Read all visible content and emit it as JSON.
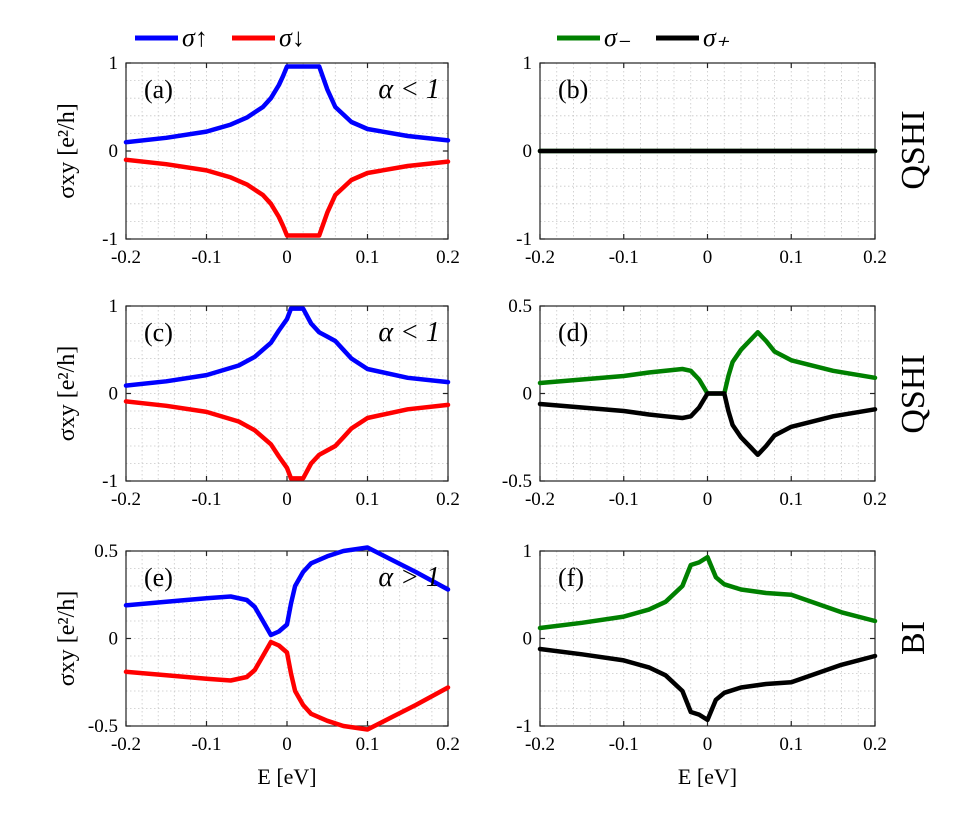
{
  "chart_data": [
    {
      "panel": "(a)",
      "type": "line",
      "condition": "α < 1",
      "xlim": [
        -0.2,
        0.2
      ],
      "ylim": [
        -1,
        1
      ],
      "xticks": [
        "-0.2",
        "-0.1",
        "0",
        "0.1",
        "0.2"
      ],
      "yticks": [
        "1",
        "0",
        "-1"
      ],
      "ylabel": "σxy [e²/h]",
      "xlabel": "",
      "series": [
        {
          "name": "σ↑",
          "color": "#0000ff",
          "x": [
            -0.2,
            -0.15,
            -0.1,
            -0.07,
            -0.05,
            -0.03,
            -0.02,
            -0.01,
            -0.005,
            0,
            0.01,
            0.02,
            0.03,
            0.04,
            0.05,
            0.06,
            0.08,
            0.1,
            0.15,
            0.2
          ],
          "y": [
            0.1,
            0.15,
            0.22,
            0.3,
            0.38,
            0.5,
            0.6,
            0.75,
            0.85,
            0.96,
            0.96,
            0.96,
            0.96,
            0.96,
            0.7,
            0.5,
            0.33,
            0.25,
            0.17,
            0.12
          ]
        },
        {
          "name": "σ↓",
          "color": "#ff0000",
          "x": [
            -0.2,
            -0.15,
            -0.1,
            -0.07,
            -0.05,
            -0.03,
            -0.02,
            -0.01,
            -0.005,
            0,
            0.01,
            0.02,
            0.03,
            0.04,
            0.05,
            0.06,
            0.08,
            0.1,
            0.15,
            0.2
          ],
          "y": [
            -0.1,
            -0.15,
            -0.22,
            -0.3,
            -0.38,
            -0.5,
            -0.6,
            -0.75,
            -0.85,
            -0.96,
            -0.96,
            -0.96,
            -0.96,
            -0.96,
            -0.7,
            -0.5,
            -0.33,
            -0.25,
            -0.17,
            -0.12
          ]
        }
      ]
    },
    {
      "panel": "(b)",
      "type": "line",
      "condition": "",
      "xlim": [
        -0.2,
        0.2
      ],
      "ylim": [
        -1,
        1
      ],
      "xticks": [
        "-0.2",
        "-0.1",
        "0",
        "0.1",
        "0.2"
      ],
      "yticks": [
        "1",
        "0",
        "-1"
      ],
      "ylabel": "",
      "xlabel": "",
      "series": [
        {
          "name": "σ₋",
          "color": "#008000",
          "x": [
            -0.2,
            0.2
          ],
          "y": [
            0,
            0
          ]
        },
        {
          "name": "σ₊",
          "color": "#000000",
          "x": [
            -0.2,
            0.2
          ],
          "y": [
            0,
            0
          ]
        }
      ]
    },
    {
      "panel": "(c)",
      "type": "line",
      "condition": "α < 1",
      "xlim": [
        -0.2,
        0.2
      ],
      "ylim": [
        -1,
        1
      ],
      "xticks": [
        "-0.2",
        "-0.1",
        "0",
        "0.1",
        "0.2"
      ],
      "yticks": [
        "1",
        "0",
        "-1"
      ],
      "ylabel": "σxy [e²/h]",
      "xlabel": "",
      "series": [
        {
          "name": "σ↑",
          "color": "#0000ff",
          "x": [
            -0.2,
            -0.15,
            -0.1,
            -0.06,
            -0.04,
            -0.02,
            -0.01,
            0,
            0.005,
            0.015,
            0.02,
            0.03,
            0.04,
            0.05,
            0.06,
            0.07,
            0.08,
            0.1,
            0.15,
            0.2
          ],
          "y": [
            0.09,
            0.14,
            0.21,
            0.32,
            0.42,
            0.58,
            0.72,
            0.85,
            0.97,
            0.97,
            0.97,
            0.8,
            0.7,
            0.65,
            0.6,
            0.5,
            0.4,
            0.28,
            0.18,
            0.13
          ]
        },
        {
          "name": "σ↓",
          "color": "#ff0000",
          "x": [
            -0.2,
            -0.15,
            -0.1,
            -0.06,
            -0.04,
            -0.02,
            -0.01,
            0,
            0.005,
            0.015,
            0.02,
            0.03,
            0.04,
            0.05,
            0.06,
            0.07,
            0.08,
            0.1,
            0.15,
            0.2
          ],
          "y": [
            -0.09,
            -0.14,
            -0.21,
            -0.32,
            -0.42,
            -0.58,
            -0.72,
            -0.85,
            -0.97,
            -0.97,
            -0.97,
            -0.8,
            -0.7,
            -0.65,
            -0.6,
            -0.5,
            -0.4,
            -0.28,
            -0.18,
            -0.13
          ]
        }
      ]
    },
    {
      "panel": "(d)",
      "type": "line",
      "condition": "",
      "xlim": [
        -0.2,
        0.2
      ],
      "ylim": [
        -0.5,
        0.5
      ],
      "xticks": [
        "-0.2",
        "-0.1",
        "0",
        "0.1",
        "0.2"
      ],
      "yticks": [
        "0.5",
        "0",
        "-0.5"
      ],
      "ylabel": "",
      "xlabel": "",
      "series": [
        {
          "name": "σ₋",
          "color": "#008000",
          "x": [
            -0.2,
            -0.15,
            -0.1,
            -0.07,
            -0.05,
            -0.03,
            -0.02,
            -0.01,
            -0.005,
            0,
            0.005,
            0.02,
            0.025,
            0.03,
            0.04,
            0.05,
            0.06,
            0.07,
            0.08,
            0.1,
            0.15,
            0.2
          ],
          "y": [
            0.06,
            0.08,
            0.1,
            0.12,
            0.13,
            0.14,
            0.13,
            0.08,
            0.04,
            0.0,
            0.0,
            0.0,
            0.1,
            0.18,
            0.25,
            0.3,
            0.35,
            0.3,
            0.24,
            0.19,
            0.13,
            0.09
          ]
        },
        {
          "name": "σ₊",
          "color": "#000000",
          "x": [
            -0.2,
            -0.15,
            -0.1,
            -0.07,
            -0.05,
            -0.03,
            -0.02,
            -0.01,
            -0.005,
            0,
            0.005,
            0.02,
            0.025,
            0.03,
            0.04,
            0.05,
            0.06,
            0.07,
            0.08,
            0.1,
            0.15,
            0.2
          ],
          "y": [
            -0.06,
            -0.08,
            -0.1,
            -0.12,
            -0.13,
            -0.14,
            -0.13,
            -0.08,
            -0.04,
            0.0,
            0.0,
            0.0,
            -0.1,
            -0.18,
            -0.25,
            -0.3,
            -0.35,
            -0.3,
            -0.24,
            -0.19,
            -0.13,
            -0.09
          ]
        }
      ]
    },
    {
      "panel": "(e)",
      "type": "line",
      "condition": "α > 1",
      "xlim": [
        -0.2,
        0.2
      ],
      "ylim": [
        -0.5,
        0.5
      ],
      "xticks": [
        "-0.2",
        "-0.1",
        "0",
        "0.1",
        "0.2"
      ],
      "yticks": [
        "0.5",
        "0",
        "-0.5"
      ],
      "ylabel": "σxy [e²/h]",
      "xlabel": "E [eV]",
      "series": [
        {
          "name": "σ↑",
          "color": "#0000ff",
          "x": [
            -0.2,
            -0.15,
            -0.1,
            -0.07,
            -0.05,
            -0.04,
            -0.03,
            -0.02,
            -0.01,
            0,
            0.005,
            0.01,
            0.02,
            0.03,
            0.05,
            0.07,
            0.1,
            0.13,
            0.16,
            0.2
          ],
          "y": [
            0.19,
            0.21,
            0.23,
            0.24,
            0.22,
            0.18,
            0.1,
            0.02,
            0.04,
            0.08,
            0.2,
            0.3,
            0.38,
            0.43,
            0.47,
            0.5,
            0.52,
            0.45,
            0.38,
            0.28
          ]
        },
        {
          "name": "σ↓",
          "color": "#ff0000",
          "x": [
            -0.2,
            -0.15,
            -0.1,
            -0.07,
            -0.05,
            -0.04,
            -0.03,
            -0.02,
            -0.01,
            0,
            0.005,
            0.01,
            0.02,
            0.03,
            0.05,
            0.07,
            0.1,
            0.13,
            0.16,
            0.2
          ],
          "y": [
            -0.19,
            -0.21,
            -0.23,
            -0.24,
            -0.22,
            -0.18,
            -0.1,
            -0.02,
            -0.04,
            -0.08,
            -0.2,
            -0.3,
            -0.38,
            -0.43,
            -0.47,
            -0.5,
            -0.52,
            -0.45,
            -0.38,
            -0.28
          ]
        }
      ]
    },
    {
      "panel": "(f)",
      "type": "line",
      "condition": "",
      "xlim": [
        -0.2,
        0.2
      ],
      "ylim": [
        -1,
        1
      ],
      "xticks": [
        "-0.2",
        "-0.1",
        "0",
        "0.1",
        "0.2"
      ],
      "yticks": [
        "1",
        "0",
        "-1"
      ],
      "ylabel": "",
      "xlabel": "E [eV]",
      "series": [
        {
          "name": "σ₋",
          "color": "#008000",
          "x": [
            -0.2,
            -0.15,
            -0.1,
            -0.07,
            -0.05,
            -0.03,
            -0.02,
            -0.01,
            0,
            0.01,
            0.02,
            0.04,
            0.07,
            0.1,
            0.13,
            0.16,
            0.2
          ],
          "y": [
            0.12,
            0.18,
            0.25,
            0.33,
            0.42,
            0.6,
            0.84,
            0.87,
            0.93,
            0.7,
            0.62,
            0.56,
            0.52,
            0.5,
            0.4,
            0.3,
            0.2
          ]
        },
        {
          "name": "σ₊",
          "color": "#000000",
          "x": [
            -0.2,
            -0.15,
            -0.1,
            -0.07,
            -0.05,
            -0.03,
            -0.02,
            -0.01,
            0,
            0.01,
            0.02,
            0.04,
            0.07,
            0.1,
            0.13,
            0.16,
            0.2
          ],
          "y": [
            -0.12,
            -0.18,
            -0.25,
            -0.33,
            -0.42,
            -0.6,
            -0.84,
            -0.87,
            -0.93,
            -0.7,
            -0.62,
            -0.56,
            -0.52,
            -0.5,
            -0.4,
            -0.3,
            -0.2
          ]
        }
      ]
    }
  ],
  "legends": {
    "left": [
      {
        "label": "σ↑",
        "color": "#0000ff"
      },
      {
        "label": "σ↓",
        "color": "#ff0000"
      }
    ],
    "right": [
      {
        "label": "σ₋",
        "color": "#008000"
      },
      {
        "label": "σ₊",
        "color": "#000000"
      }
    ]
  },
  "row_labels": [
    "QSHI",
    "QSHI",
    "BI"
  ]
}
